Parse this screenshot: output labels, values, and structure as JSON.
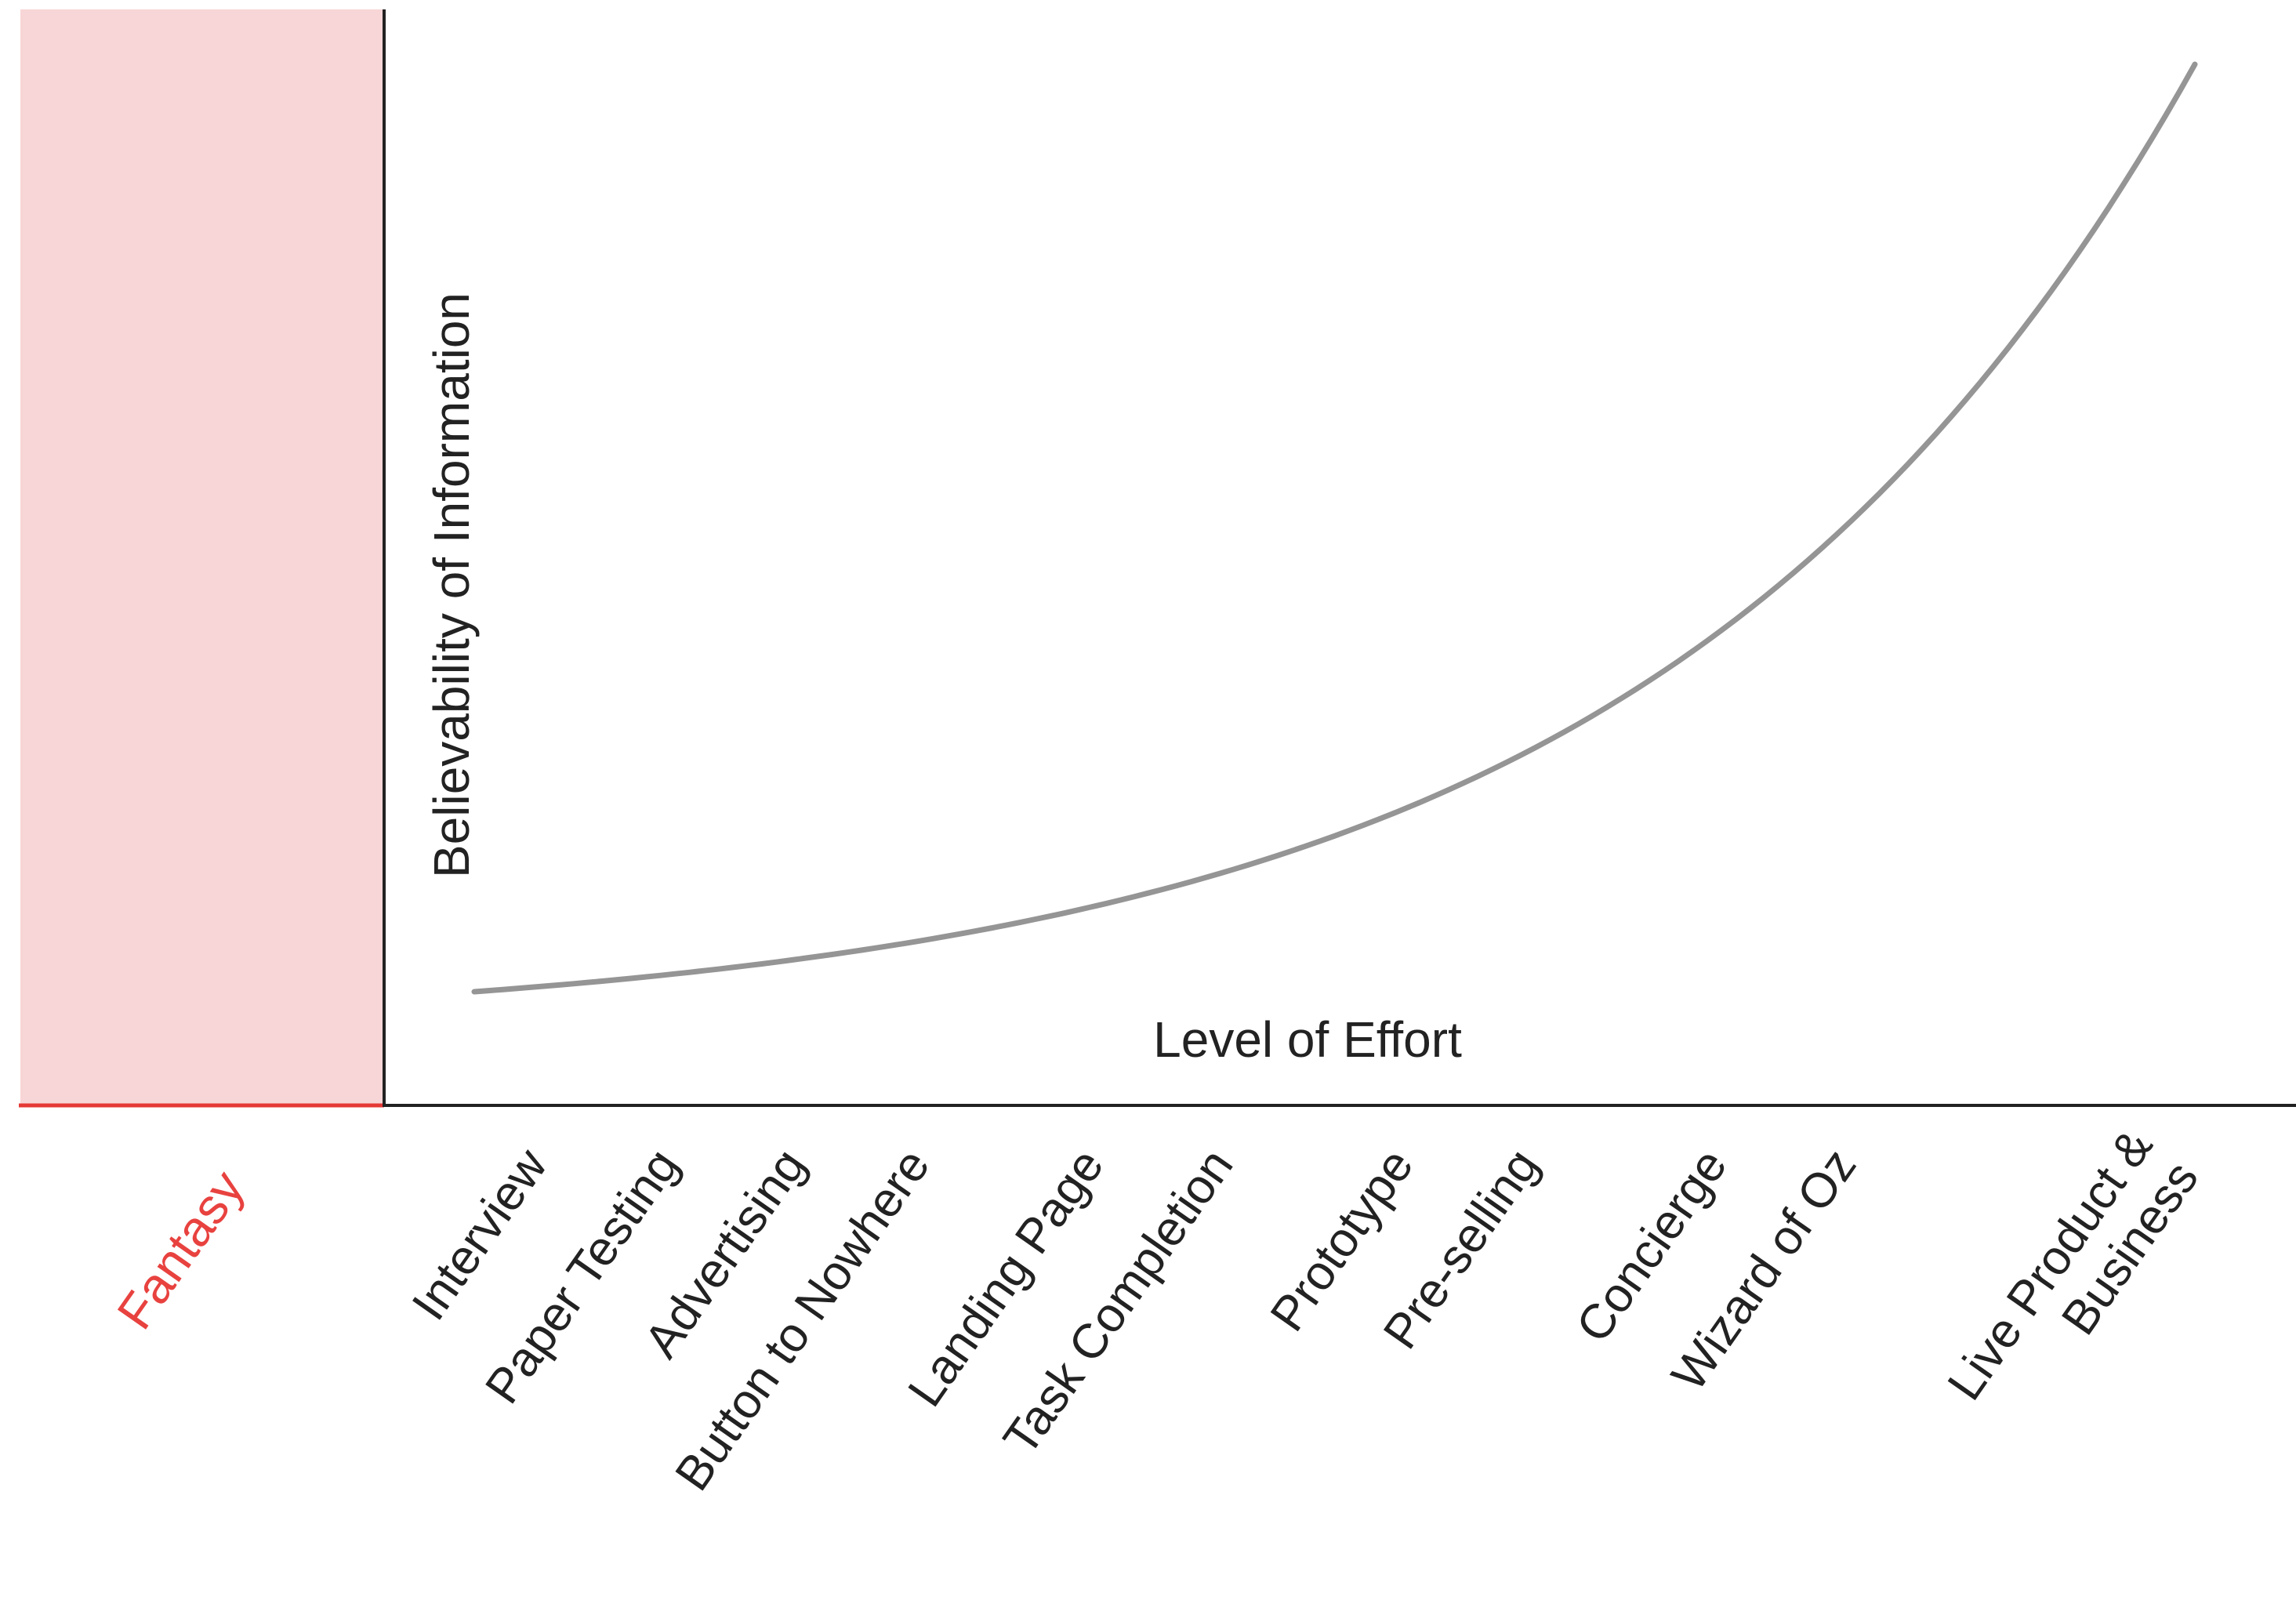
{
  "y_axis_label": "Believability of Information",
  "x_axis_label": "Level of Effort",
  "fantasy_label": "Fantasy",
  "methods": [
    {
      "lines": [
        "Interview"
      ]
    },
    {
      "lines": [
        "Paper Testing"
      ]
    },
    {
      "lines": [
        "Advertising"
      ]
    },
    {
      "lines": [
        "Button to Nowhere"
      ]
    },
    {
      "lines": [
        "Landing Page"
      ]
    },
    {
      "lines": [
        "Task Completion"
      ]
    },
    {
      "lines": [
        "Prototype"
      ]
    },
    {
      "lines": [
        "Pre-selling"
      ]
    },
    {
      "lines": [
        "Concierge"
      ]
    },
    {
      "lines": [
        "Wizard of Oz"
      ]
    },
    {
      "lines": [
        "Live Product &",
        "Business"
      ]
    }
  ],
  "colors": {
    "fantasy_fill": "#f8d5d6",
    "fantasy_text": "#e8423f",
    "fantasy_baseline": "#e53935",
    "axis": "#222222",
    "curve": "#959595",
    "text": "#222222"
  }
}
